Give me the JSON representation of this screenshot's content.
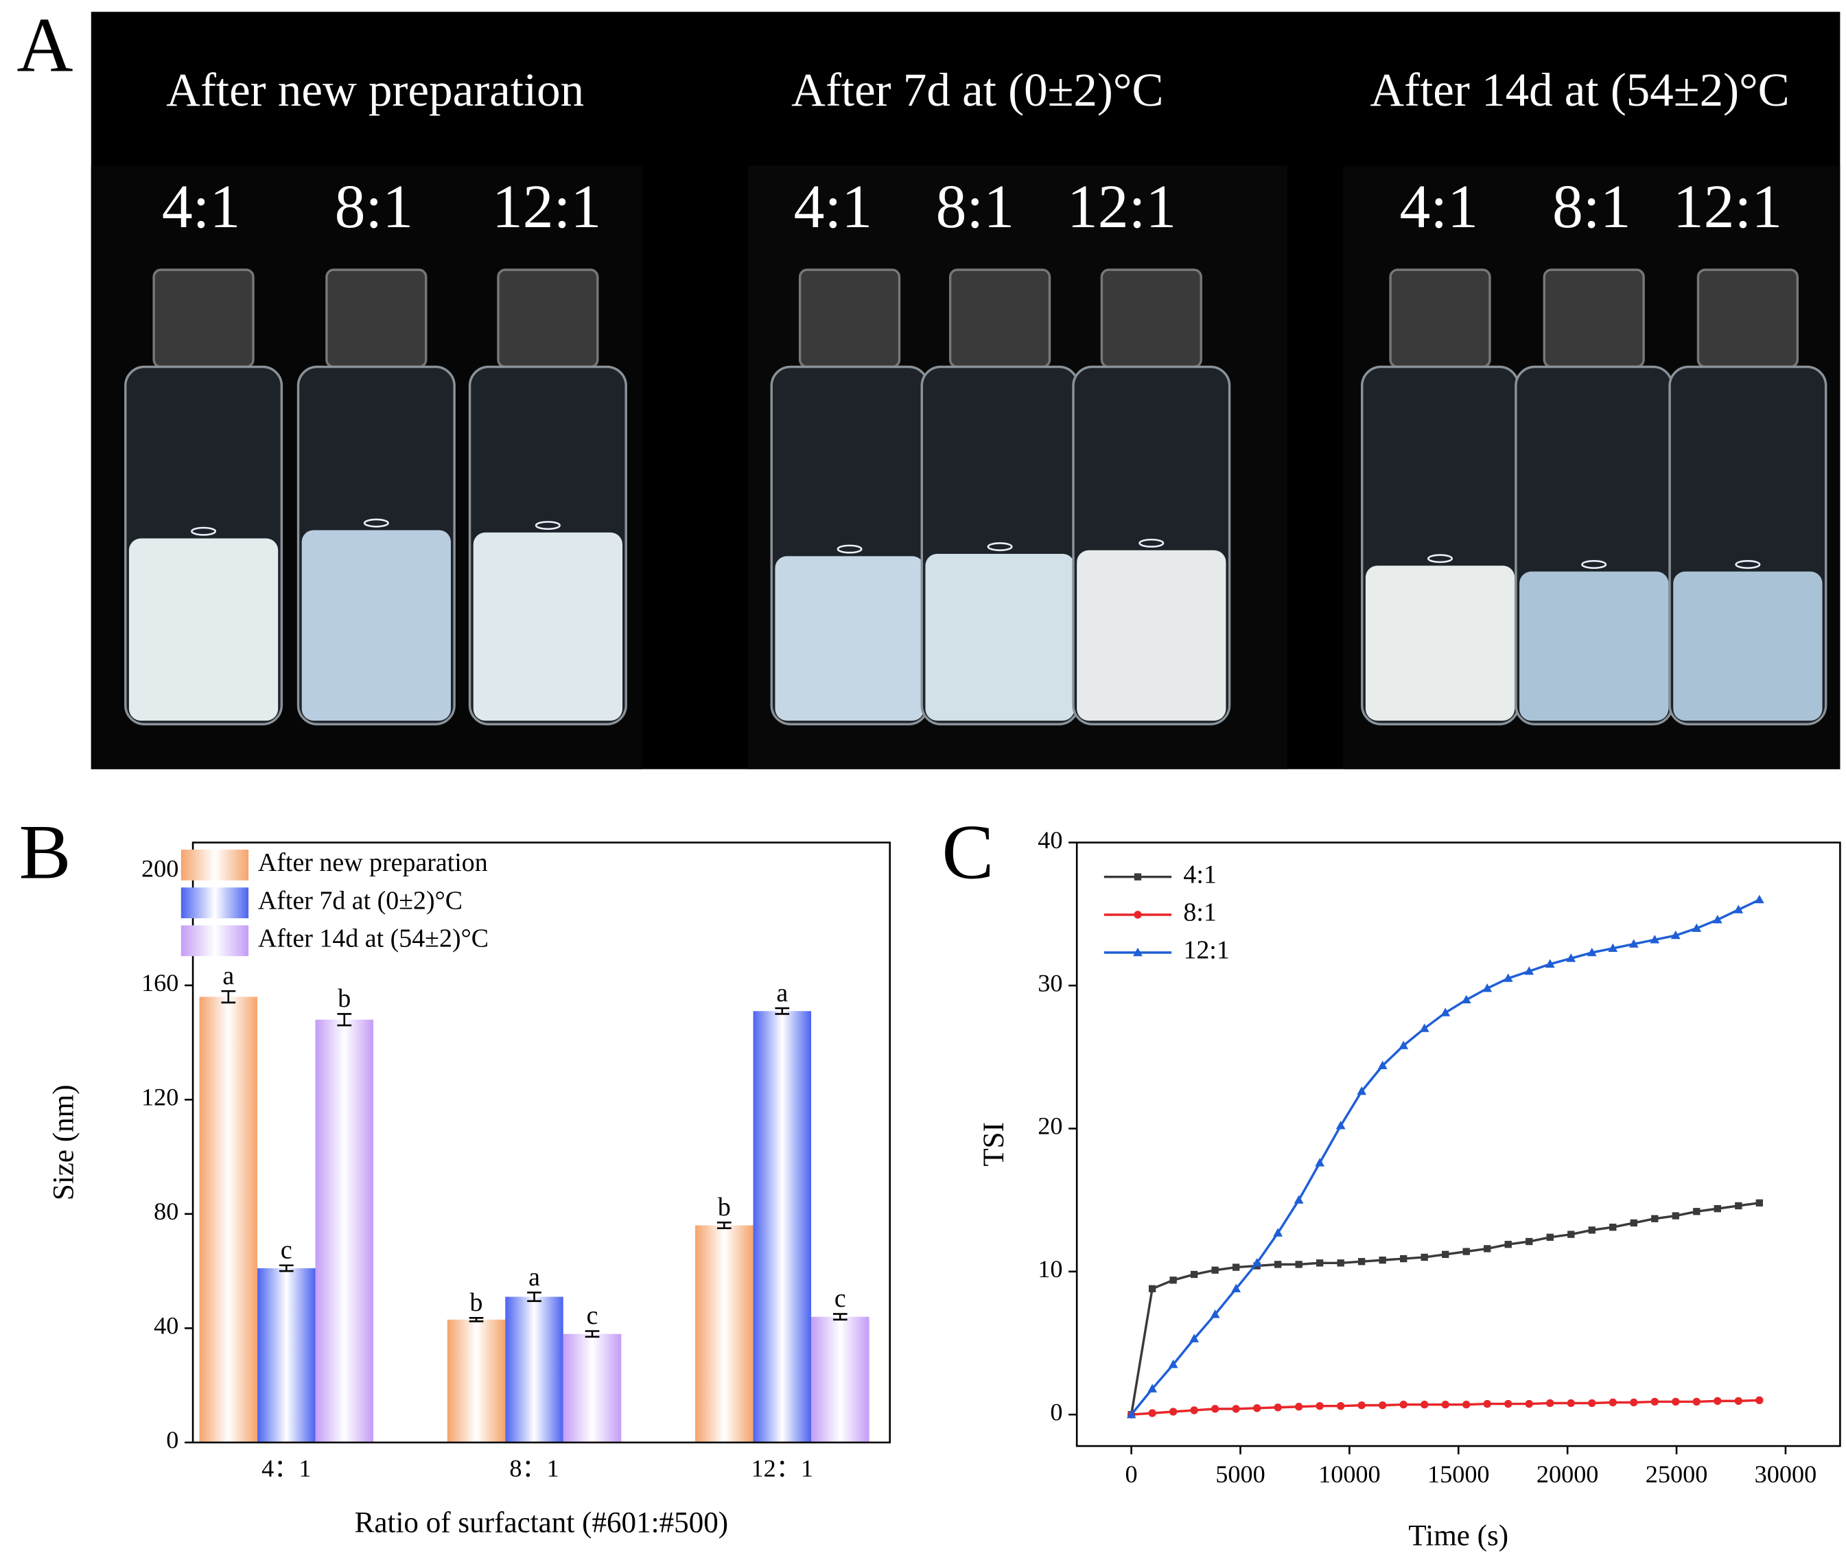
{
  "panel_a": {
    "label": "A",
    "titles": [
      "After new preparation",
      "After 7d  at (0±2)°C",
      "After 14d  at (54±2)°C"
    ],
    "ratios": [
      [
        "4:1",
        "8:1",
        "12:1"
      ],
      [
        "4:1",
        "8:1",
        "12:1"
      ],
      [
        "4:1",
        "8:1",
        "12:1"
      ]
    ]
  },
  "chart_data": [
    {
      "type": "bar",
      "panel_label": "B",
      "y_label": "Size (nm)",
      "x_label": "Ratio of surfactant (#601:#500)",
      "categories": [
        "4：1",
        "8：1",
        "12：1"
      ],
      "series": [
        {
          "name": "After new preparation",
          "color": "#f5a36b",
          "values": [
            156,
            43,
            76
          ],
          "errors": [
            2,
            0.6,
            1
          ],
          "significance": [
            "a",
            "b",
            "b"
          ]
        },
        {
          "name": "After 7d at (0±2)°C",
          "color": "#4a63f0",
          "values": [
            61,
            51,
            151
          ],
          "errors": [
            1,
            1.5,
            1
          ],
          "significance": [
            "c",
            "a",
            "a"
          ]
        },
        {
          "name": "After 14d at (54±2)°C",
          "color": "#c49cf6",
          "values": [
            148,
            38,
            44
          ],
          "errors": [
            2,
            1,
            1
          ],
          "significance": [
            "b",
            "c",
            "c"
          ]
        }
      ],
      "ylim": [
        0,
        210
      ],
      "yticks": [
        0,
        40,
        80,
        120,
        160,
        200
      ],
      "legend": "upper left"
    },
    {
      "type": "line",
      "panel_label": "C",
      "y_label": "TSI",
      "x_label": "Time (s)",
      "x": [
        0,
        960,
        1920,
        2880,
        3840,
        4800,
        5760,
        6720,
        7680,
        8640,
        9600,
        10560,
        11520,
        12480,
        13440,
        14400,
        15360,
        16320,
        17280,
        18240,
        19200,
        20160,
        21120,
        22080,
        23040,
        24000,
        24960,
        25920,
        26880,
        27840,
        28800
      ],
      "series": [
        {
          "name": "4:1",
          "color": "#3a3a3a",
          "marker": "square",
          "values": [
            0,
            8.8,
            9.4,
            9.8,
            10.1,
            10.3,
            10.4,
            10.5,
            10.5,
            10.6,
            10.6,
            10.7,
            10.8,
            10.9,
            11.0,
            11.2,
            11.4,
            11.6,
            11.9,
            12.1,
            12.4,
            12.6,
            12.9,
            13.1,
            13.4,
            13.7,
            13.9,
            14.2,
            14.4,
            14.6,
            14.8
          ]
        },
        {
          "name": "8:1",
          "color": "#e8262a",
          "marker": "circle",
          "values": [
            0,
            0.1,
            0.2,
            0.3,
            0.4,
            0.4,
            0.45,
            0.5,
            0.55,
            0.6,
            0.6,
            0.65,
            0.65,
            0.7,
            0.7,
            0.7,
            0.7,
            0.75,
            0.75,
            0.75,
            0.8,
            0.8,
            0.8,
            0.85,
            0.85,
            0.9,
            0.9,
            0.9,
            0.95,
            0.95,
            1.0
          ]
        },
        {
          "name": "12:1",
          "color": "#1f5fd6",
          "marker": "triangle",
          "values": [
            0,
            1.8,
            3.5,
            5.3,
            7.0,
            8.8,
            10.6,
            12.7,
            15.0,
            17.6,
            20.2,
            22.6,
            24.4,
            25.8,
            27.0,
            28.1,
            29.0,
            29.8,
            30.5,
            31.0,
            31.5,
            31.9,
            32.3,
            32.6,
            32.9,
            33.2,
            33.5,
            34.0,
            34.6,
            35.3,
            36.0
          ]
        }
      ],
      "xlim": [
        -2500,
        32500
      ],
      "xticks": [
        0,
        5000,
        10000,
        15000,
        20000,
        25000,
        30000
      ],
      "ylim": [
        -2.2,
        40
      ],
      "yticks": [
        0,
        10,
        20,
        30,
        40
      ],
      "legend": "upper left"
    }
  ]
}
